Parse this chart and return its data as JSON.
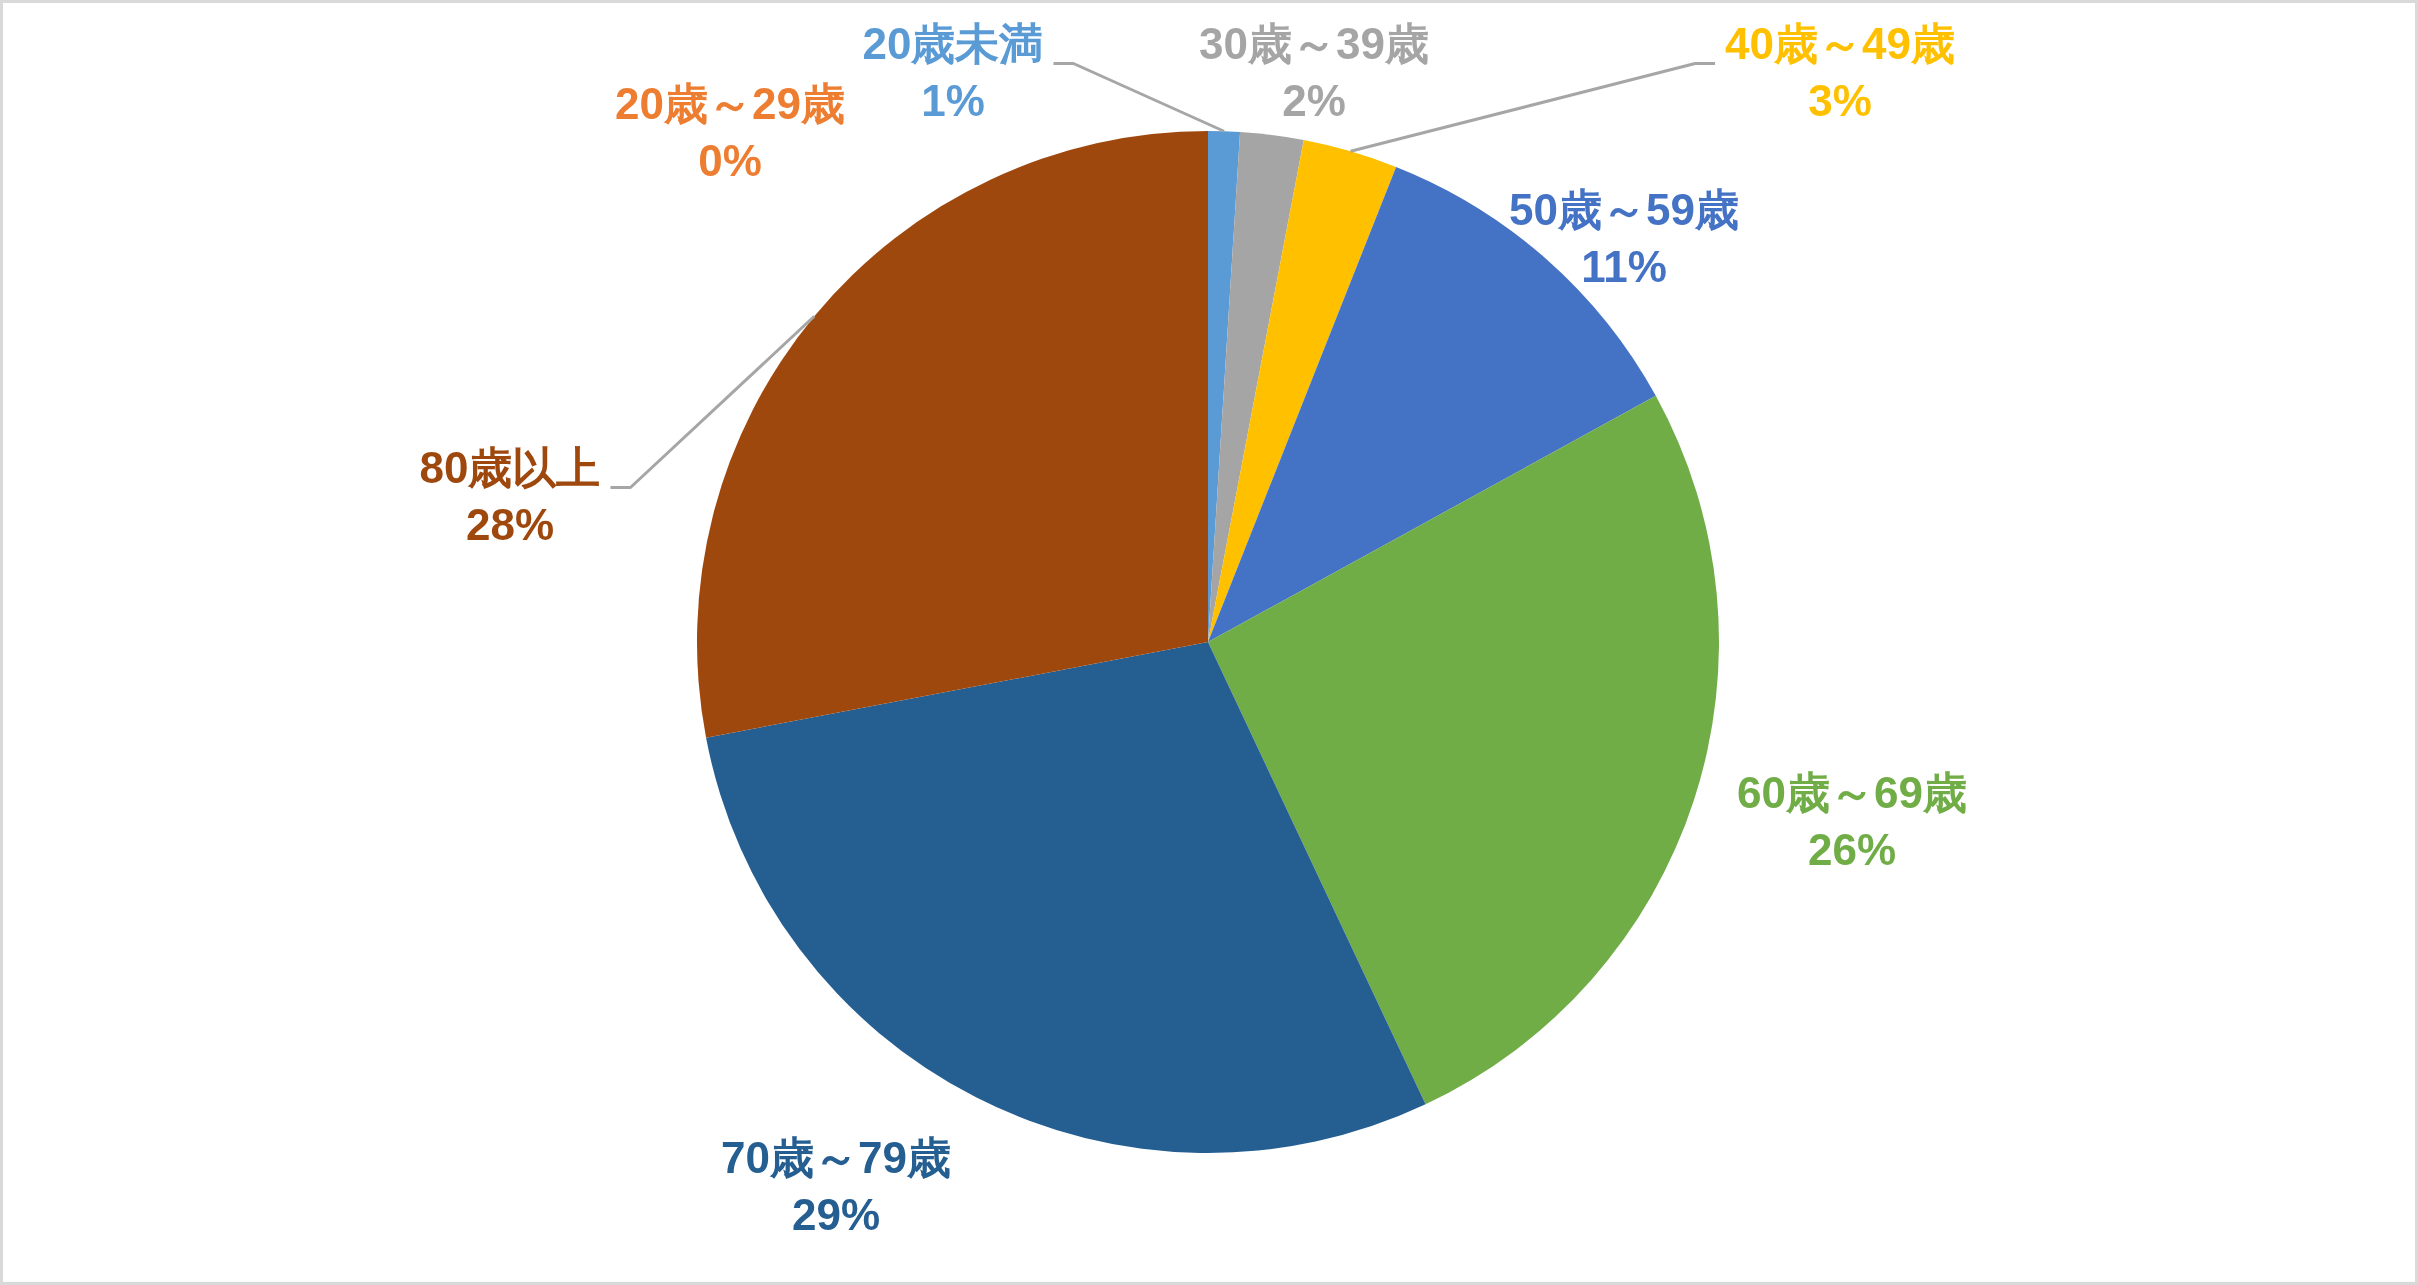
{
  "chart_data": {
    "type": "pie",
    "categories": [
      "20歳未満",
      "20歳～29歳",
      "30歳～39歳",
      "40歳～49歳",
      "50歳～59歳",
      "60歳～69歳",
      "70歳～79歳",
      "80歳以上"
    ],
    "values": [
      1,
      0,
      2,
      3,
      11,
      26,
      29,
      28
    ],
    "value_labels": [
      "1%",
      "0%",
      "2%",
      "3%",
      "11%",
      "26%",
      "29%",
      "28%"
    ],
    "colors": [
      "#5b9bd5",
      "#ed7d31",
      "#a5a5a5",
      "#ffc000",
      "#4472c4",
      "#70ad47",
      "#255e91",
      "#9e480e"
    ]
  }
}
